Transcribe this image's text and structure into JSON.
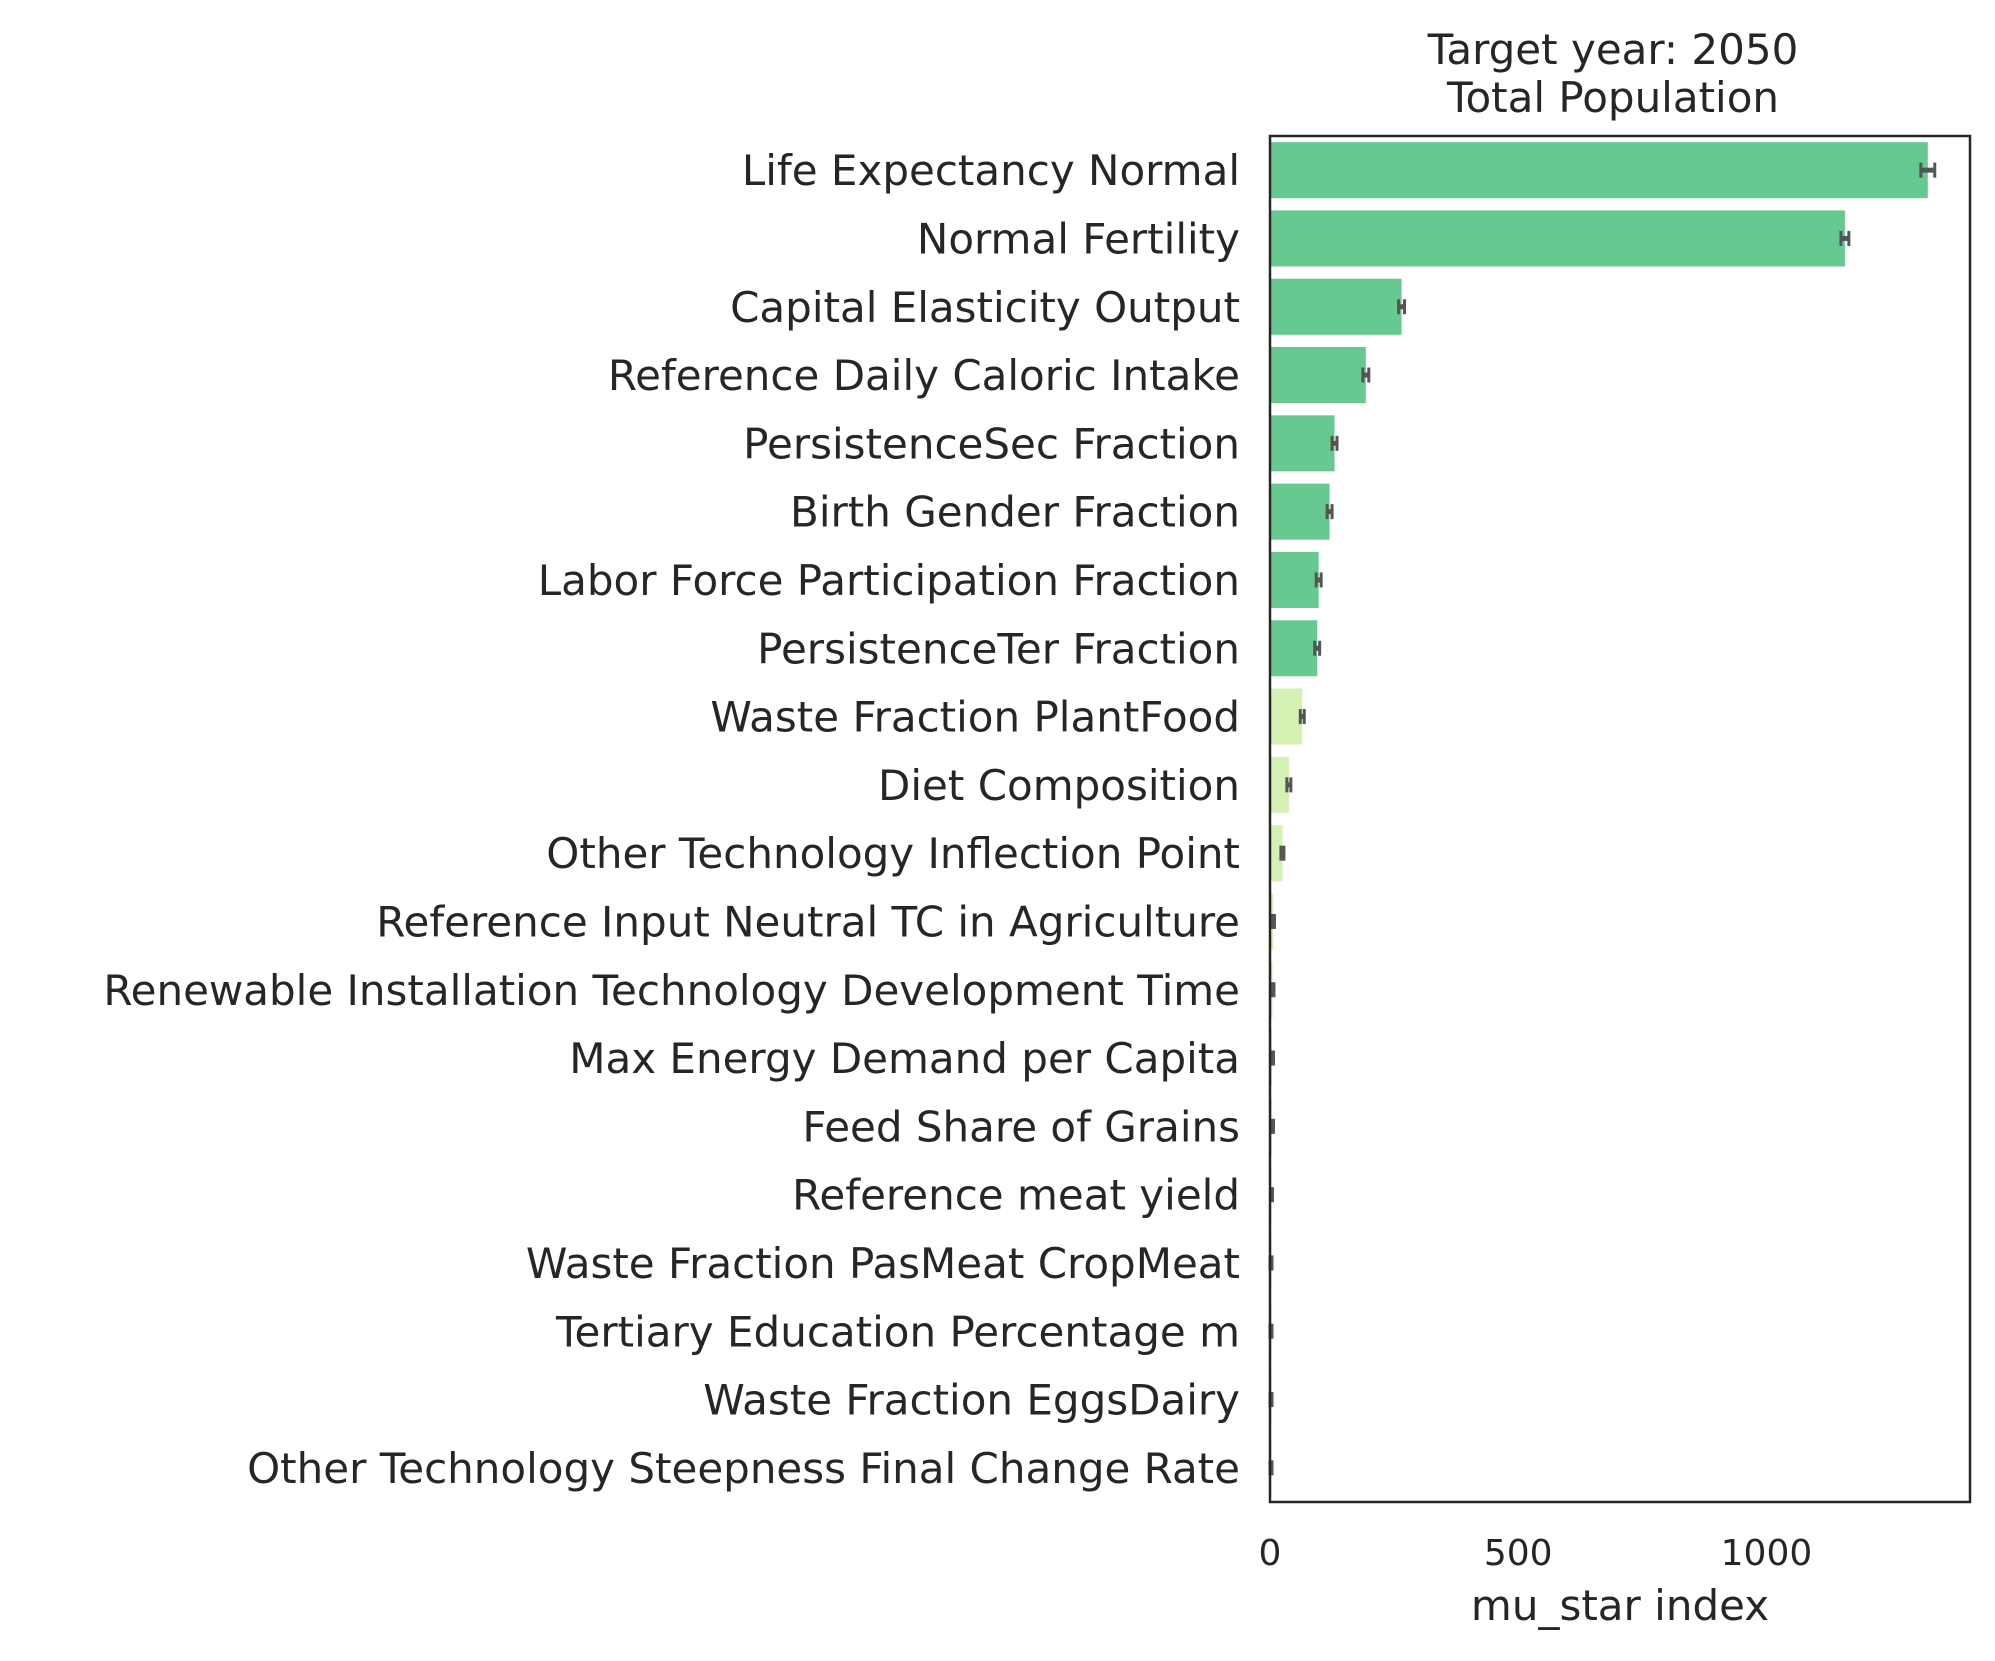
{
  "chart_data": {
    "type": "bar",
    "orientation": "horizontal",
    "title": "Target year: 2050",
    "subtitle": "Total Population",
    "xlabel": "mu_star index",
    "ylabel": "",
    "xlim": [
      0,
      1410
    ],
    "xticks": [
      0,
      500,
      1000
    ],
    "xtick_labels": [
      "0",
      "500",
      "1000"
    ],
    "grid": false,
    "categories": [
      "Life Expectancy Normal",
      "Normal Fertility",
      "Capital Elasticity Output",
      "Reference Daily Caloric Intake",
      "PersistenceSec Fraction",
      "Birth Gender Fraction",
      "Labor Force Participation Fraction",
      "PersistenceTer Fraction",
      "Waste Fraction PlantFood",
      "Diet Composition",
      "Other Technology Inflection Point",
      "Reference Input Neutral TC in Agriculture",
      "Renewable Installation Technology Development Time",
      "Max Energy Demand per Capita",
      "Feed Share of Grains",
      "Reference meat yield",
      "Waste Fraction PasMeat CropMeat",
      "Tertiary Education Percentage m",
      "Waste Fraction EggsDairy",
      "Other Technology Steepness Final Change Rate"
    ],
    "values": [
      1325,
      1158,
      265,
      193,
      130,
      120,
      98,
      95,
      65,
      38,
      25,
      6,
      5,
      4,
      4,
      3,
      2,
      2,
      2,
      1
    ],
    "errors": [
      14,
      8,
      6,
      6,
      5,
      5,
      5,
      5,
      4,
      4,
      3,
      3,
      3,
      3,
      3,
      2,
      2,
      2,
      2,
      1
    ],
    "colors": [
      "#66c990",
      "#66c990",
      "#66c990",
      "#66c990",
      "#66c990",
      "#66c990",
      "#66c990",
      "#66c990",
      "#d5f0b3",
      "#d5f0b3",
      "#d5f0b3",
      "#d5f0b3",
      "#d5f0b3",
      "#d5f0b3",
      "#d5f0b3",
      "#d5f0b3",
      "#d5f0b3",
      "#d5f0b3",
      "#d5f0b3",
      "#d5f0b3"
    ],
    "error_color": "#555555"
  }
}
